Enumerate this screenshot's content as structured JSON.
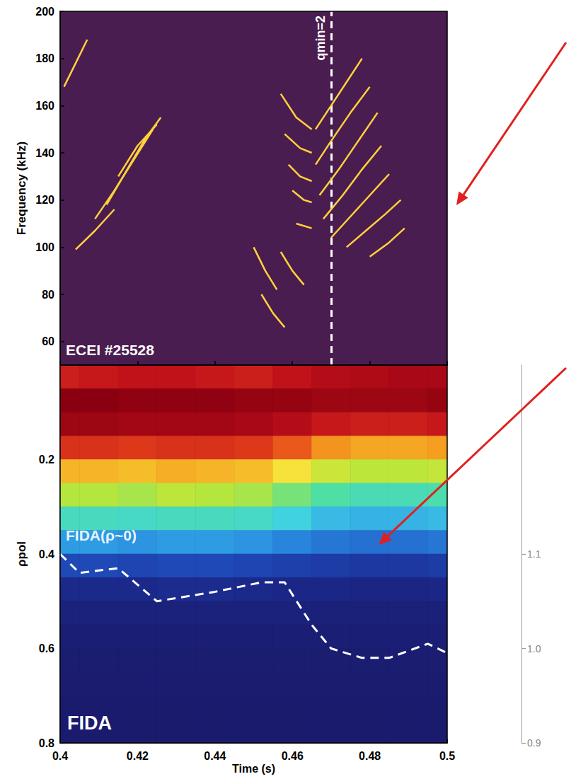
{
  "chart_data": [
    {
      "type": "line",
      "y_label": "Frequency (kHz)",
      "xlim": [
        0.4,
        0.5
      ],
      "xticks": [
        0.4,
        0.42,
        0.44,
        0.46,
        0.48,
        0.5
      ],
      "ylim": [
        50,
        200
      ],
      "yticks": [
        60,
        80,
        100,
        120,
        140,
        160,
        180,
        200
      ],
      "tick_labels": "y",
      "color": "#ffd23c",
      "annotations": [
        {
          "text": "qmin=2",
          "x": 0.465
        },
        {
          "text": "ECEI #25528"
        }
      ],
      "series": [
        {
          "x": [
            0.404,
            0.409,
            0.414
          ],
          "values": [
            99,
            107,
            116
          ]
        },
        {
          "x": [
            0.409,
            0.414,
            0.419,
            0.424
          ],
          "values": [
            112,
            124,
            137,
            150
          ]
        },
        {
          "x": [
            0.412,
            0.417,
            0.422,
            0.426
          ],
          "values": [
            118,
            132,
            146,
            155
          ]
        },
        {
          "x": [
            0.415,
            0.42,
            0.425
          ],
          "values": [
            130,
            143,
            152
          ]
        },
        {
          "x": [
            0.401,
            0.404,
            0.407
          ],
          "values": [
            168,
            178,
            188
          ]
        },
        {
          "x": [
            0.45,
            0.453,
            0.456
          ],
          "values": [
            100,
            90,
            82
          ]
        },
        {
          "x": [
            0.452,
            0.455,
            0.458
          ],
          "values": [
            80,
            72,
            66
          ]
        },
        {
          "x": [
            0.457,
            0.46,
            0.463
          ],
          "values": [
            98,
            90,
            84
          ]
        },
        {
          "x": [
            0.457,
            0.461,
            0.465
          ],
          "values": [
            165,
            155,
            150
          ]
        },
        {
          "x": [
            0.458,
            0.462,
            0.465
          ],
          "values": [
            148,
            142,
            140
          ]
        },
        {
          "x": [
            0.459,
            0.462,
            0.465
          ],
          "values": [
            135,
            130,
            128
          ]
        },
        {
          "x": [
            0.46,
            0.463,
            0.465
          ],
          "values": [
            124,
            120,
            119
          ]
        },
        {
          "x": [
            0.461,
            0.465
          ],
          "values": [
            110,
            108
          ]
        },
        {
          "x": [
            0.466,
            0.47,
            0.474,
            0.478
          ],
          "values": [
            150,
            160,
            170,
            180
          ]
        },
        {
          "x": [
            0.466,
            0.47,
            0.475,
            0.48
          ],
          "values": [
            135,
            145,
            157,
            168
          ]
        },
        {
          "x": [
            0.467,
            0.472,
            0.477,
            0.482
          ],
          "values": [
            122,
            133,
            145,
            157
          ]
        },
        {
          "x": [
            0.468,
            0.473,
            0.478,
            0.483
          ],
          "values": [
            112,
            122,
            133,
            143
          ]
        },
        {
          "x": [
            0.47,
            0.475,
            0.48,
            0.485
          ],
          "values": [
            104,
            113,
            122,
            131
          ]
        },
        {
          "x": [
            0.474,
            0.479,
            0.484,
            0.488
          ],
          "values": [
            100,
            107,
            114,
            120
          ]
        },
        {
          "x": [
            0.48,
            0.485,
            0.489
          ],
          "values": [
            96,
            102,
            108
          ]
        }
      ]
    },
    {
      "type": "heatmap",
      "x_label": "Time (s)",
      "y_label": "ρpol",
      "xlim": [
        0.4,
        0.5
      ],
      "xticks": [
        0.4,
        0.42,
        0.44,
        0.46,
        0.48,
        0.5
      ],
      "ylim": [
        0.8,
        0
      ],
      "yticks": [
        0.2,
        0.4,
        0.6,
        0.8
      ],
      "y2lim": [
        0.9,
        1.3
      ],
      "y2ticks": [
        0.9,
        {
          "value": 1.0,
          "label": "1.0"
        },
        1.1
      ],
      "annotations": [
        {
          "text": "FIDA(ρ~0)"
        },
        {
          "text": "FIDA"
        }
      ],
      "x": [
        0.4,
        0.41,
        0.42,
        0.43,
        0.44,
        0.45,
        0.46,
        0.47,
        0.48,
        0.49,
        0.5
      ],
      "y": [
        0.025,
        0.075,
        0.125,
        0.175,
        0.225,
        0.275,
        0.325,
        0.375,
        0.425,
        0.475,
        0.525,
        0.575,
        0.625,
        0.675,
        0.725,
        0.775
      ],
      "values": [
        [
          0.86,
          0.87,
          0.88,
          0.88,
          0.87,
          0.86,
          0.88,
          0.9,
          0.91,
          0.92,
          0.92
        ],
        [
          0.97,
          0.97,
          0.96,
          0.96,
          0.96,
          0.95,
          0.95,
          0.94,
          0.94,
          0.94,
          0.95
        ],
        [
          0.94,
          0.94,
          0.93,
          0.93,
          0.93,
          0.92,
          0.9,
          0.87,
          0.86,
          0.86,
          0.87
        ],
        [
          0.83,
          0.83,
          0.82,
          0.83,
          0.83,
          0.82,
          0.78,
          0.72,
          0.7,
          0.7,
          0.71
        ],
        [
          0.68,
          0.68,
          0.67,
          0.69,
          0.68,
          0.67,
          0.62,
          0.56,
          0.54,
          0.54,
          0.55
        ],
        [
          0.53,
          0.53,
          0.52,
          0.54,
          0.53,
          0.52,
          0.48,
          0.44,
          0.42,
          0.42,
          0.43
        ],
        [
          0.41,
          0.41,
          0.4,
          0.41,
          0.41,
          0.4,
          0.37,
          0.33,
          0.32,
          0.32,
          0.33
        ],
        [
          0.29,
          0.29,
          0.28,
          0.29,
          0.29,
          0.28,
          0.26,
          0.24,
          0.23,
          0.23,
          0.24
        ],
        [
          0.17,
          0.17,
          0.16,
          0.17,
          0.17,
          0.16,
          0.15,
          0.14,
          0.13,
          0.13,
          0.14
        ],
        [
          0.09,
          0.09,
          0.09,
          0.1,
          0.1,
          0.09,
          0.08,
          0.08,
          0.07,
          0.07,
          0.08
        ],
        [
          0.05,
          0.05,
          0.05,
          0.05,
          0.05,
          0.05,
          0.05,
          0.04,
          0.04,
          0.04,
          0.04
        ],
        [
          0.03,
          0.03,
          0.03,
          0.03,
          0.03,
          0.03,
          0.03,
          0.03,
          0.03,
          0.03,
          0.03
        ],
        [
          0.02,
          0.02,
          0.02,
          0.02,
          0.02,
          0.02,
          0.02,
          0.02,
          0.02,
          0.02,
          0.02
        ],
        [
          0.015,
          0.015,
          0.015,
          0.015,
          0.015,
          0.015,
          0.015,
          0.015,
          0.015,
          0.015,
          0.015
        ],
        [
          0.01,
          0.01,
          0.01,
          0.01,
          0.01,
          0.01,
          0.01,
          0.01,
          0.01,
          0.01,
          0.01
        ],
        [
          0.01,
          0.01,
          0.01,
          0.01,
          0.01,
          0.01,
          0.01,
          0.01,
          0.01,
          0.01,
          0.01
        ]
      ],
      "series": [
        {
          "type": "line",
          "axis": "y2",
          "color": "#ffffff",
          "line_style": "dashed",
          "x": [
            0.4,
            0.405,
            0.415,
            0.425,
            0.44,
            0.452,
            0.458,
            0.465,
            0.47,
            0.478,
            0.485,
            0.495,
            0.5
          ],
          "values": [
            1.1,
            1.08,
            1.085,
            1.05,
            1.06,
            1.07,
            1.07,
            1.025,
            1.0,
            0.99,
            0.99,
            1.005,
            0.995
          ]
        }
      ]
    }
  ]
}
